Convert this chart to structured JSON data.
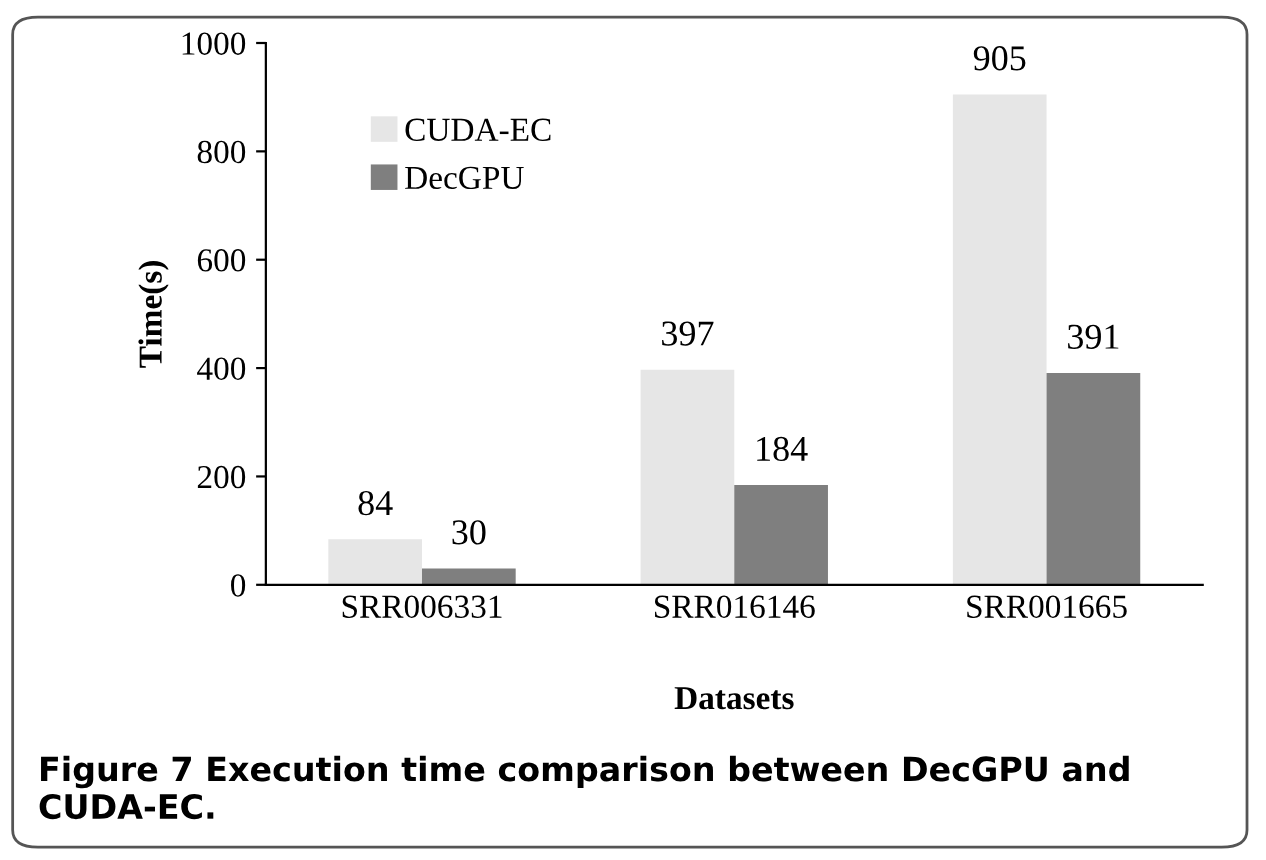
{
  "chart_data": {
    "type": "bar",
    "xlabel": "Datasets",
    "ylabel": "Time(s)",
    "categories": [
      "SRR006331",
      "SRR016146",
      "SRR001665"
    ],
    "series": [
      {
        "name": "CUDA-EC",
        "color": "#e6e6e6",
        "values": [
          84,
          397,
          905
        ]
      },
      {
        "name": "DecGPU",
        "color": "#7f7f7f",
        "values": [
          30,
          184,
          391
        ]
      }
    ],
    "ylim": [
      0,
      1000
    ],
    "yticks": [
      0,
      200,
      400,
      600,
      800,
      1000
    ],
    "data_labels": true,
    "legend": "top left",
    "grid": false,
    "annotations": [
      "Figure 7 Execution time comparison between DecGPU and CUDA-EC."
    ]
  }
}
